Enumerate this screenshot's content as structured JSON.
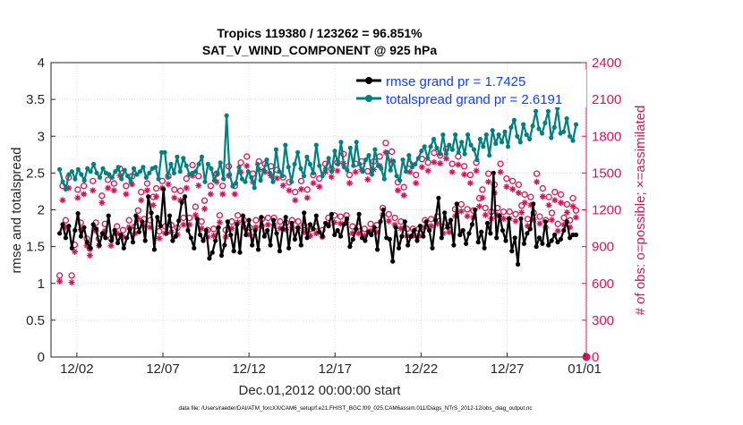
{
  "chart_data": {
    "type": "line",
    "title_line1": "Tropics 119380 / 123262 = 96.851%",
    "title_line2": "SAT_V_WIND_COMPONENT @ 925 hPa",
    "xlabel": "Dec.01,2012 00:00:00 start",
    "ylabel_left": "rmse and totalspread",
    "ylabel_right": "# of obs: o=possible; ×=assimilated",
    "footer": "data file: /Users/raeder/DAI/ATM_forcXX/CAM6_setup/f.e21.FHIST_BGC.f09_025.CAM6assim.011/Diags_NTrS_2012-12/obs_diag_output.nc",
    "xlim": [
      0.5,
      31.6
    ],
    "ylim_left": [
      0,
      4
    ],
    "ylim_right": [
      0,
      2400
    ],
    "xticks": [
      {
        "x": 2,
        "label": "12/02"
      },
      {
        "x": 7,
        "label": "12/07"
      },
      {
        "x": 12,
        "label": "12/12"
      },
      {
        "x": 17,
        "label": "12/17"
      },
      {
        "x": 22,
        "label": "12/22"
      },
      {
        "x": 27,
        "label": "12/27"
      },
      {
        "x": 31.5,
        "label": "01/01"
      }
    ],
    "yticks_left": [
      "0",
      "0.5",
      "1",
      "1.5",
      "2",
      "2.5",
      "3",
      "3.5",
      "4"
    ],
    "yticks_right": [
      "0",
      "300",
      "600",
      "900",
      "1200",
      "1500",
      "1800",
      "2100",
      "2400"
    ],
    "colors": {
      "rmse": "#000000",
      "spread": "#008080",
      "obs": "#d4145a",
      "legend_text": "#1040ff",
      "grid": "#d9d9d9"
    },
    "series": [
      {
        "name": "rmse grand pr = 1.7425",
        "key": "rmse",
        "values": [
          1.68,
          1.8,
          1.62,
          1.78,
          1.48,
          1.72,
          1.95,
          1.64,
          1.76,
          1.56,
          1.48,
          1.8,
          1.74,
          1.52,
          1.68,
          1.62,
          1.92,
          1.58,
          1.72,
          1.55,
          1.66,
          1.48,
          1.62,
          1.74,
          1.56,
          1.92,
          1.7,
          1.84,
          1.58,
          2.18,
          1.96,
          1.46,
          1.9,
          1.78,
          2.28,
          1.68,
          1.92,
          1.58,
          1.64,
          1.85,
          2.1,
          2.18,
          1.72,
          1.62,
          1.48,
          1.88,
          1.66,
          1.58,
          1.72,
          1.34,
          1.42,
          1.58,
          1.76,
          1.38,
          1.52,
          1.84,
          1.66,
          1.44,
          1.8,
          1.42,
          1.92,
          1.66,
          1.86,
          1.52,
          1.72,
          1.46,
          1.9,
          1.64,
          1.72,
          1.52,
          1.86,
          1.68,
          1.44,
          1.74,
          1.9,
          1.48,
          1.82,
          1.6,
          1.76,
          1.52,
          1.96,
          1.62,
          1.8,
          1.74,
          1.92,
          1.7,
          1.64,
          1.82,
          1.78,
          1.94,
          1.66,
          1.72,
          1.64,
          1.8,
          1.88,
          1.5,
          1.6,
          1.74,
          1.94,
          1.62,
          1.58,
          1.7,
          1.66,
          1.76,
          1.46,
          1.84,
          2.0,
          1.62,
          1.6,
          1.3,
          1.76,
          1.48,
          1.64,
          1.84,
          1.52,
          1.64,
          1.72,
          1.58,
          1.78,
          1.64,
          1.84,
          1.72,
          1.48,
          1.86,
          2.16,
          1.62,
          1.96,
          1.76,
          1.86,
          1.52,
          2.08,
          1.66,
          1.72,
          1.54,
          1.68,
          1.8,
          2.0,
          1.56,
          1.7,
          1.48,
          1.82,
          1.68,
          2.5,
          1.62,
          1.92,
          1.72,
          1.58,
          1.88,
          1.44,
          1.62,
          1.26,
          1.88,
          1.54,
          1.68,
          1.74,
          2.08,
          1.5,
          1.62,
          1.54,
          1.84,
          1.52,
          1.58,
          1.66,
          1.56,
          1.6,
          1.72,
          1.84,
          1.62,
          1.66,
          1.66
        ]
      },
      {
        "name": "totalspread grand pr = 2.6191",
        "key": "spread",
        "values": [
          2.55,
          2.38,
          2.28,
          2.48,
          2.52,
          2.42,
          2.55,
          2.48,
          2.4,
          2.56,
          2.52,
          2.62,
          2.5,
          2.44,
          2.56,
          2.5,
          2.48,
          2.44,
          2.52,
          2.58,
          2.42,
          2.54,
          2.46,
          2.38,
          2.56,
          2.48,
          2.52,
          2.58,
          2.44,
          2.5,
          2.56,
          2.58,
          2.42,
          2.78,
          2.78,
          2.44,
          2.62,
          2.5,
          2.72,
          2.52,
          2.7,
          2.6,
          2.48,
          2.5,
          2.52,
          2.62,
          2.72,
          2.38,
          2.62,
          2.56,
          2.4,
          2.5,
          2.64,
          2.42,
          3.28,
          2.48,
          2.32,
          2.36,
          2.58,
          2.42,
          2.38,
          2.52,
          2.44,
          2.3,
          2.62,
          2.4,
          2.54,
          2.68,
          2.5,
          2.38,
          2.82,
          2.52,
          2.46,
          2.88,
          2.58,
          2.38,
          2.62,
          2.78,
          2.56,
          2.46,
          2.72,
          2.62,
          2.5,
          2.88,
          2.6,
          2.46,
          2.56,
          2.7,
          2.52,
          2.8,
          2.62,
          2.92,
          2.58,
          2.54,
          2.84,
          2.6,
          2.92,
          2.62,
          2.52,
          2.68,
          2.74,
          2.48,
          2.82,
          2.6,
          2.56,
          2.42,
          2.78,
          2.54,
          2.66,
          2.46,
          2.4,
          2.68,
          2.52,
          2.74,
          2.58,
          2.62,
          2.7,
          2.8,
          2.86,
          2.7,
          2.86,
          2.96,
          2.84,
          2.76,
          3.02,
          2.76,
          2.88,
          2.82,
          3.02,
          2.78,
          2.92,
          2.76,
          3.02,
          2.88,
          2.82,
          2.68,
          2.96,
          2.86,
          3.02,
          2.74,
          3.08,
          2.9,
          3.02,
          2.92,
          3.06,
          2.86,
          3.12,
          3.22,
          3.0,
          2.92,
          3.16,
          3.02,
          2.96,
          3.14,
          3.34,
          3.1,
          3.04,
          3.18,
          3.34,
          2.98,
          3.12,
          3.38,
          3.04,
          3.06,
          3.24,
          3.0,
          2.94,
          3.16
        ]
      },
      {
        "name": "possible",
        "key": "possible",
        "values": [
          650,
          1380,
          1100,
          1450,
          650,
          900,
          1350,
          1080,
          1380,
          950,
          870,
          1420,
          1080,
          950,
          1300,
          1070,
          1430,
          950,
          1400,
          1050,
          1520,
          1020,
          1380,
          1100,
          1460,
          1050,
          1180,
          1330,
          1110,
          1400,
          1100,
          1290,
          1360,
          1010,
          1420,
          1050,
          1460,
          1060,
          1350,
          1040,
          1340,
          1120,
          1440,
          1120,
          1550,
          1210,
          1460,
          1090,
          1260,
          1020,
          1380,
          1030,
          1480,
          1140,
          1380,
          1020,
          1540,
          1090,
          1380,
          1140,
          1570,
          1100,
          1620,
          1040,
          1480,
          1100,
          1580,
          1110,
          1560,
          1120,
          1540,
          1120,
          1510,
          1090,
          1450,
          1080,
          1410,
          1100,
          1330,
          1090,
          1420,
          1060,
          1350,
          1030,
          1470,
          1050,
          1440,
          1020,
          1560,
          1120,
          1520,
          1140,
          1570,
          1130,
          1640,
          1140,
          1470,
          1050,
          1560,
          1050,
          1580,
          1030,
          1500,
          1070,
          1580,
          1060,
          1620,
          1200,
          1730,
          1150,
          1660,
          1120,
          1410,
          1090,
          1370,
          1030,
          1560,
          1030,
          1470,
          1030,
          1600,
          1100,
          1570,
          1110,
          1650,
          1130,
          1630,
          1050,
          1680,
          1060,
          1560,
          1190,
          1620,
          1230,
          1540,
          1190,
          1470,
          1180,
          1570,
          1280,
          1350,
          1200,
          1480,
          1170,
          1390,
          1200,
          1560,
          1170,
          1440,
          1170,
          1420,
          1150,
          1390,
          1220,
          1310,
          1110,
          1290,
          1160,
          1480,
          1130,
          1360,
          1100,
          1290,
          1160,
          1330,
          1070,
          1310,
          1120,
          1230,
          1100,
          1280,
          1180
        ]
      },
      {
        "name": "assimilated",
        "key": "assimilated",
        "values": [
          640,
          1300,
          1080,
          1400,
          630,
          880,
          1320,
          1060,
          1350,
          930,
          850,
          1380,
          1050,
          930,
          1280,
          1050,
          1400,
          930,
          1380,
          1030,
          1500,
          1000,
          1350,
          1080,
          1430,
          1030,
          1150,
          1300,
          1090,
          1380,
          1080,
          1260,
          1330,
          990,
          1400,
          1030,
          1430,
          1040,
          1320,
          1020,
          1300,
          1100,
          1400,
          1100,
          1500,
          1180,
          1420,
          1070,
          1230,
          1000,
          1350,
          1010,
          1450,
          1120,
          1350,
          1000,
          1500,
          1070,
          1350,
          1120,
          1530,
          1080,
          1580,
          1020,
          1450,
          1080,
          1550,
          1090,
          1530,
          1100,
          1500,
          1100,
          1480,
          1070,
          1420,
          1060,
          1380,
          1080,
          1300,
          1070,
          1390,
          1040,
          1320,
          1010,
          1440,
          1030,
          1410,
          1000,
          1530,
          1100,
          1490,
          1120,
          1540,
          1110,
          1600,
          1120,
          1440,
          1030,
          1530,
          1030,
          1550,
          1010,
          1470,
          1050,
          1550,
          1040,
          1580,
          1180,
          1690,
          1130,
          1620,
          1100,
          1380,
          1070,
          1340,
          1010,
          1530,
          1010,
          1440,
          1010,
          1570,
          1080,
          1540,
          1090,
          1610,
          1110,
          1600,
          1030,
          1640,
          1040,
          1530,
          1170,
          1590,
          1210,
          1510,
          1170,
          1440,
          1160,
          1540,
          1250,
          1320,
          1180,
          1450,
          1150,
          1360,
          1180,
          1530,
          1150,
          1410,
          1150,
          1390,
          1130,
          1360,
          1200,
          1280,
          1090,
          1260,
          1140,
          1450,
          1110,
          1330,
          1080,
          1260,
          1140,
          1300,
          1050,
          1280,
          1100,
          1200,
          1080,
          1250,
          1160
        ]
      }
    ],
    "obs_end_marker": 0
  }
}
